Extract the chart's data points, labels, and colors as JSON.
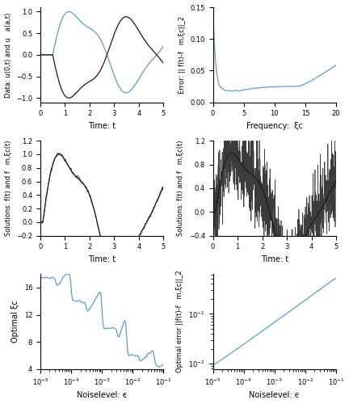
{
  "figsize": [
    4.32,
    5.0
  ],
  "dpi": 100,
  "blue_color": "#5b9bd5",
  "black_color": "#1a1a1a",
  "t_range": [
    0,
    5
  ],
  "xi_range": [
    0,
    20
  ],
  "top_left_ylabel": "Data: u(0,t) and u   a(a,t)",
  "top_left_xlabel": "Time: t",
  "top_right_ylabel": "Error: || f(t)-f   m,ξc||_2",
  "top_right_xlabel": "Frequency:  ξc",
  "mid_left_ylabel": "Solutions: f(t) and f   m,ξc(t)",
  "mid_left_xlabel": "Time: t",
  "mid_right_ylabel": "Solutions: f(t) and f   m,ξc(t)",
  "mid_right_xlabel": "Time: t",
  "bot_left_ylabel": "Optimal ξc",
  "bot_left_xlabel": "Noiselevel: ϵ",
  "bot_right_ylabel": "Optimal error ||f(t)-f   m,ξc||_2",
  "bot_right_xlabel": "Noiselevel: ϵ"
}
